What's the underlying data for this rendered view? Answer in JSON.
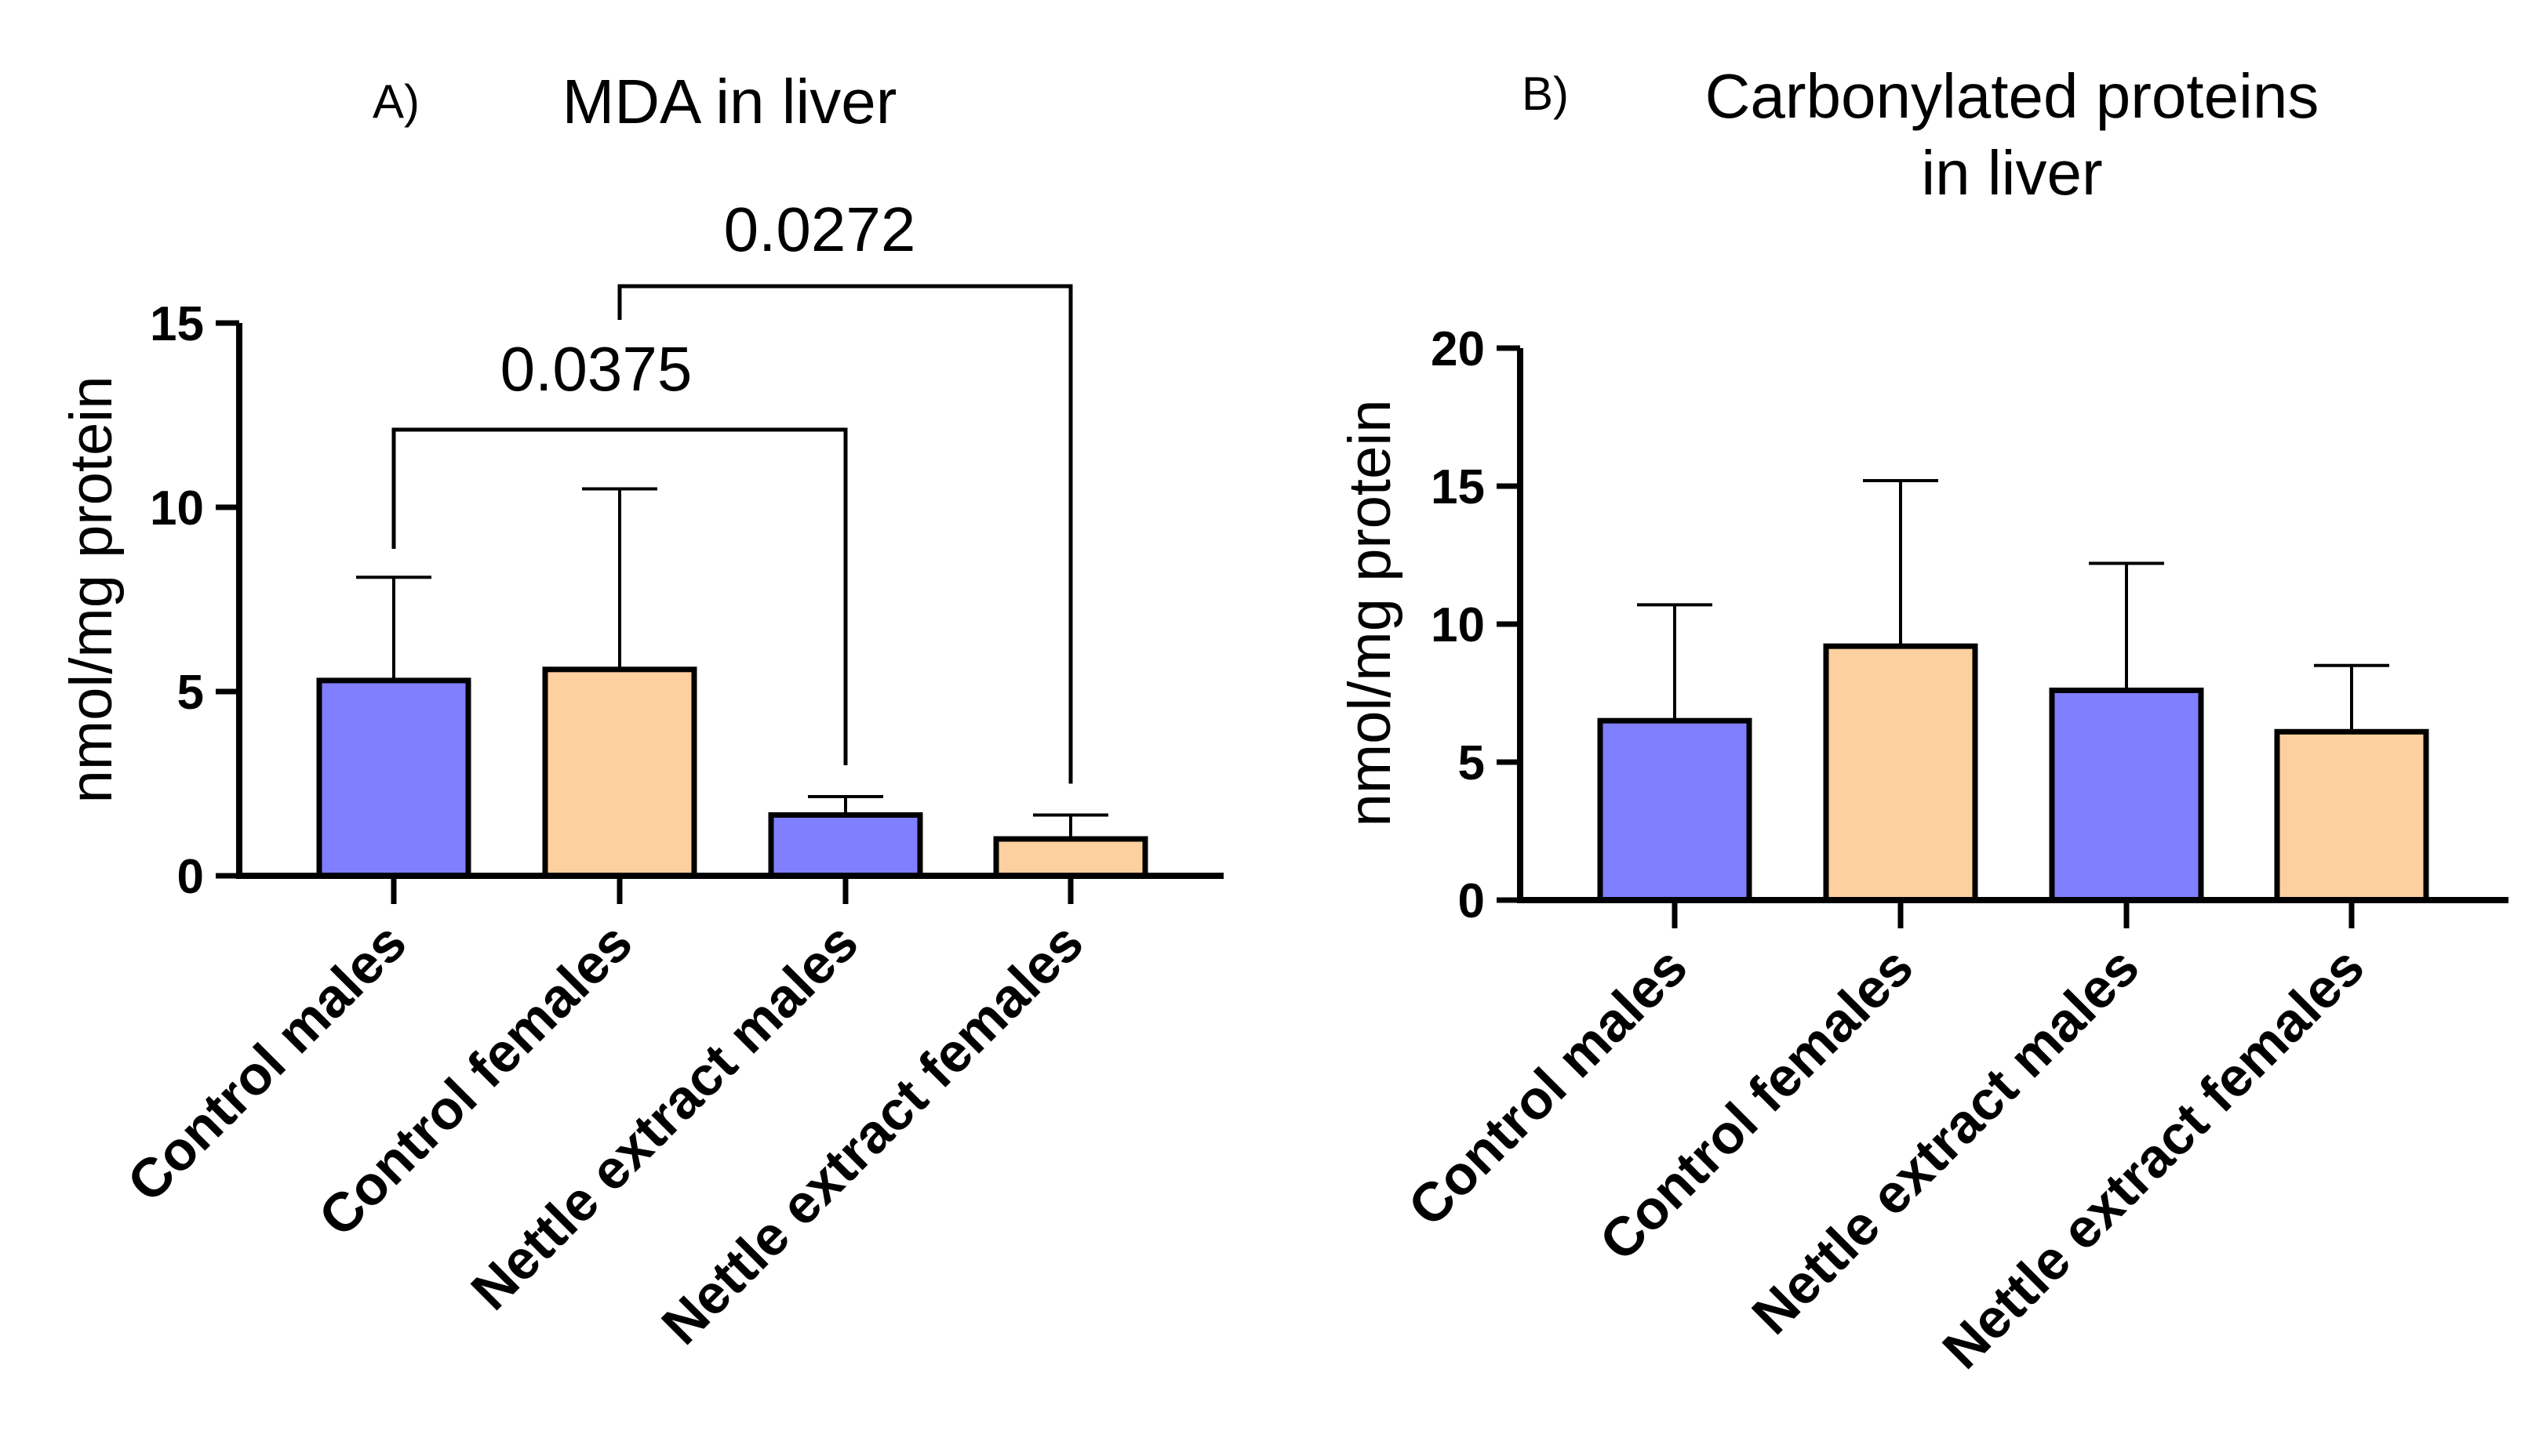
{
  "chart_data": [
    {
      "type": "bar",
      "panel_label": "A)",
      "title": "MDA in liver",
      "xlabel": "",
      "ylabel": "nmol/mg protein",
      "ylim": [
        0,
        15
      ],
      "yticks": [
        0,
        5,
        10,
        15
      ],
      "categories": [
        "Control males",
        "Control females",
        "Nettle extract males",
        "Nettle extract females"
      ],
      "values": [
        5.3,
        5.6,
        1.65,
        1.0
      ],
      "errors": [
        2.8,
        4.9,
        0.5,
        0.65
      ],
      "colors": [
        "#7f7fff",
        "#fdd09f",
        "#7f7fff",
        "#fdd09f"
      ],
      "significance": [
        {
          "from": 0,
          "to": 2,
          "label": "0.0375"
        },
        {
          "from": 1,
          "to": 3,
          "label": "0.0272"
        }
      ]
    },
    {
      "type": "bar",
      "panel_label": "B)",
      "title": [
        "Carbonylated proteins",
        "in liver"
      ],
      "xlabel": "",
      "ylabel": "nmol/mg protein",
      "ylim": [
        0,
        20
      ],
      "yticks": [
        0,
        5,
        10,
        15,
        20
      ],
      "categories": [
        "Control males",
        "Control females",
        "Nettle extract males",
        "Nettle extract females"
      ],
      "values": [
        6.5,
        9.2,
        7.6,
        6.1
      ],
      "errors": [
        4.2,
        6.0,
        4.6,
        2.4
      ],
      "colors": [
        "#7f7fff",
        "#fdd09f",
        "#7f7fff",
        "#fdd09f"
      ],
      "significance": []
    }
  ]
}
